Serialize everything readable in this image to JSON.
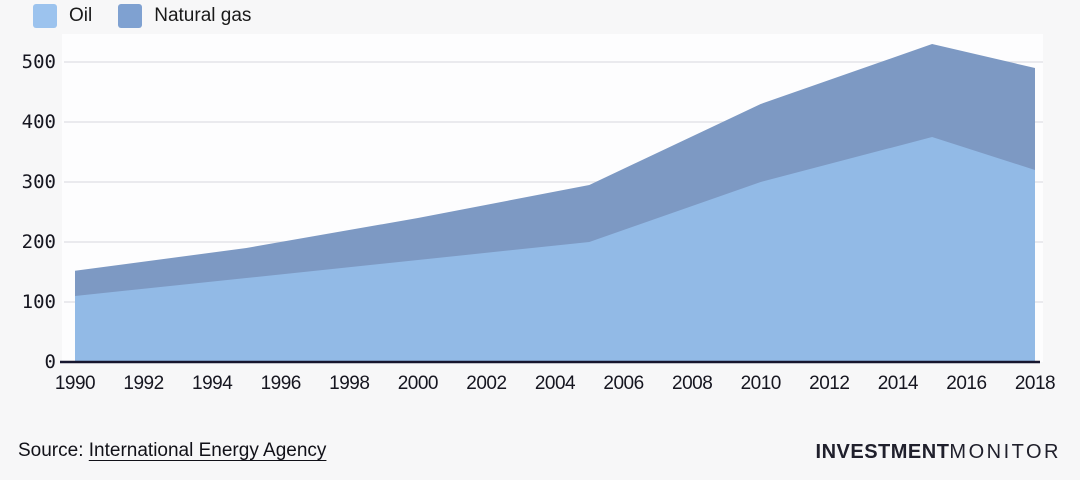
{
  "page": {
    "background": "#f7f7f8",
    "plot_background": "#fdfdfe"
  },
  "legend": {
    "items": [
      {
        "label": "Oil",
        "swatch": "#9cc3ee"
      },
      {
        "label": "Natural gas",
        "swatch": "#7fa1d1"
      }
    ]
  },
  "footer": {
    "source_prefix": "Source:",
    "source_link": "International Energy Agency",
    "logo_bold": "INVESTMENT",
    "logo_light": "MONITOR"
  },
  "chart_data": {
    "type": "area",
    "stacked": true,
    "title": "",
    "xlabel": "",
    "ylabel": "",
    "x": [
      1990,
      1995,
      2000,
      2005,
      2010,
      2015,
      2018
    ],
    "series": [
      {
        "name": "Oil",
        "values": [
          110,
          140,
          170,
          200,
          300,
          375,
          320
        ],
        "color": "#92bae6"
      },
      {
        "name": "Natural gas",
        "values": [
          42,
          50,
          70,
          95,
          130,
          155,
          170
        ],
        "color": "#7d99c3"
      }
    ],
    "stacked_totals": [
      152,
      190,
      240,
      295,
      430,
      530,
      490
    ],
    "xlim": [
      1990,
      2018
    ],
    "ylim": [
      0,
      500
    ],
    "yticks": [
      0,
      100,
      200,
      300,
      400,
      500
    ],
    "xticks": [
      1990,
      1992,
      1994,
      1996,
      1998,
      2000,
      2002,
      2004,
      2006,
      2008,
      2010,
      2012,
      2014,
      2016,
      2018
    ],
    "grid": "horizontal",
    "grid_color": "#e4e4e8",
    "axis_color": "#16162e",
    "legend_position": "top-left"
  }
}
